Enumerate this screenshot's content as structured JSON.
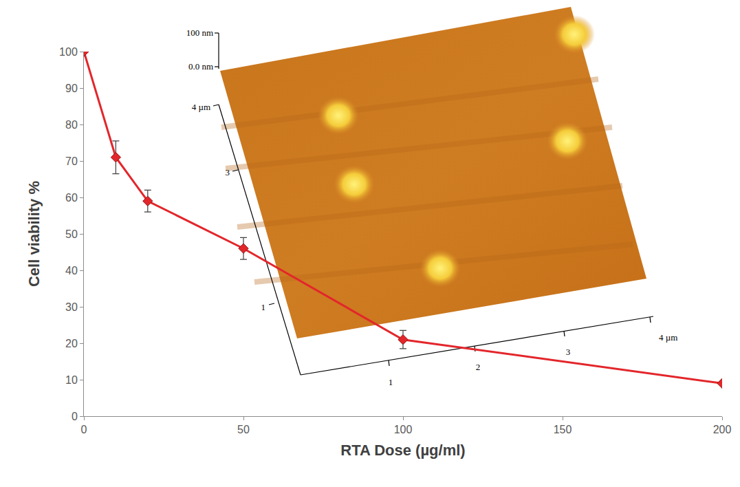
{
  "chart_data": {
    "type": "line",
    "x_label": "RTA Dose (µg/ml)",
    "y_label": "Cell viability %",
    "x": [
      0,
      10,
      20,
      50,
      100,
      200
    ],
    "series": [
      {
        "values": [
          100,
          71,
          59,
          46,
          21,
          9
        ],
        "error": [
          0,
          4.5,
          3,
          3,
          2.5,
          0
        ],
        "color": "#e3262b",
        "marker": "diamond",
        "line_style": "solid"
      }
    ],
    "xlim": [
      0,
      200
    ],
    "xticks": [
      0,
      50,
      100,
      150,
      200
    ],
    "ylim": [
      0,
      100
    ],
    "yticks": [
      0,
      10,
      20,
      30,
      40,
      50,
      60,
      70,
      80,
      90,
      100
    ],
    "grid": false
  },
  "inset": {
    "z_labels": [
      "100 nm",
      "0.0 nm"
    ],
    "y_labels": [
      "4 µm",
      "3",
      "1"
    ],
    "x_labels": [
      "1",
      "2",
      "3",
      "4 µm"
    ]
  }
}
